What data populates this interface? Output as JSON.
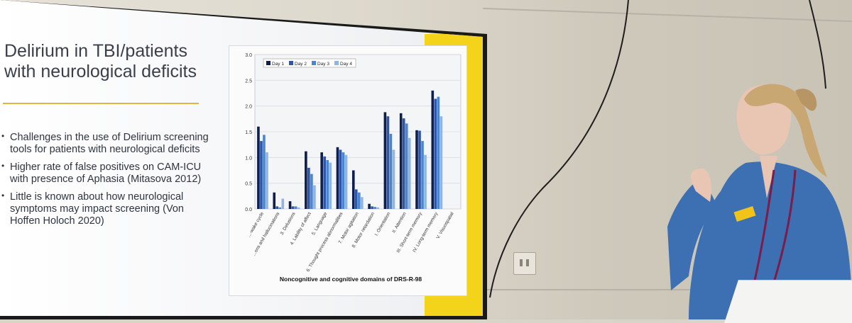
{
  "slide": {
    "title": "Delirium in TBI/patients with neurological deficits",
    "bullets": [
      "Challenges in the use of Delirium screening tools for patients with neurological deficits",
      "Higher rate of false positives on CAM-ICU with presence of Aphasia (Mitasova 2012)",
      "Little is known about how neurological symptoms may impact screening (Von Hoffen Holoch 2020)"
    ]
  },
  "chart_data": {
    "type": "bar",
    "xlabel": "Noncognitive and cognitive domains of DRS-R-98",
    "ylim": [
      0,
      3.0
    ],
    "yticks": [
      "0.0",
      "0.5",
      "1.0",
      "1.5",
      "2.0",
      "2.5",
      "3.0"
    ],
    "categories": [
      "...-wake cycle",
      "...ons and hallucinations",
      "3. Delusions",
      "4. Lability of affect",
      "5. Language",
      "6. Thought process abnormalities",
      "7. Motor agitation",
      "8. Motor retardation",
      "I. Orientation",
      "II. Attention",
      "III. Short-term memory",
      "IV. Long-term memory",
      "V. Visuospatial"
    ],
    "series": [
      {
        "name": "Day 1",
        "color": "#0f1f4d",
        "values": [
          1.6,
          0.32,
          0.15,
          1.12,
          1.1,
          1.2,
          0.75,
          0.1,
          1.88,
          1.86,
          1.53,
          2.3,
          0.0
        ]
      },
      {
        "name": "Day 2",
        "color": "#2d56a8",
        "values": [
          1.32,
          0.05,
          0.05,
          0.8,
          1.02,
          1.15,
          0.38,
          0.05,
          1.8,
          1.76,
          1.52,
          2.14,
          0.0
        ]
      },
      {
        "name": "Day 3",
        "color": "#4a86d0",
        "values": [
          1.44,
          0.03,
          0.05,
          0.68,
          0.95,
          1.1,
          0.32,
          0.04,
          1.46,
          1.66,
          1.32,
          2.18,
          0.0
        ]
      },
      {
        "name": "Day 4",
        "color": "#8fb5e3",
        "values": [
          1.1,
          0.2,
          0.03,
          0.46,
          0.9,
          1.05,
          0.23,
          0.03,
          1.15,
          1.38,
          1.05,
          1.8,
          0.0
        ]
      }
    ]
  }
}
